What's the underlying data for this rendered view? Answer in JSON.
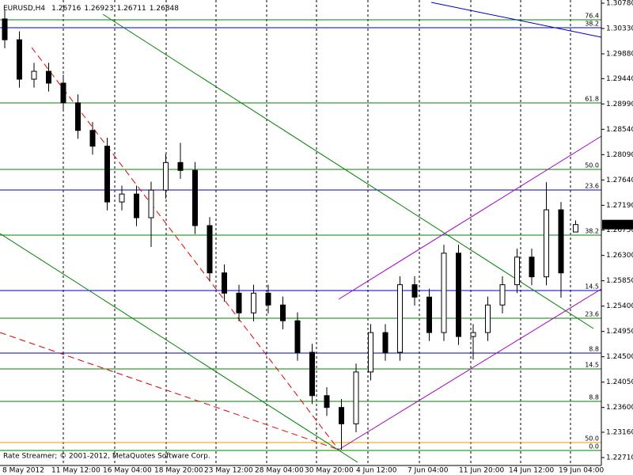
{
  "chart_data": {
    "type": "candlestick",
    "symbol": "EURUSD,H4",
    "copyright": "Rate Streamer; © 2001-2012, MetaQuotes Software Corp.",
    "ylim": [
      1.2271,
      1.3078
    ],
    "yticks": [
      {
        "value": 1.3078,
        "label": "1.30780"
      },
      {
        "value": 1.3033,
        "label": "1.30330"
      },
      {
        "value": 1.2988,
        "label": "1.29880"
      },
      {
        "value": 1.2944,
        "label": "1.29440"
      },
      {
        "value": 1.2899,
        "label": "1.28990"
      },
      {
        "value": 1.2854,
        "label": "1.28540"
      },
      {
        "value": 1.2809,
        "label": "1.28090"
      },
      {
        "value": 1.2764,
        "label": "1.27640"
      },
      {
        "value": 1.2719,
        "label": "1.27190"
      },
      {
        "value": 1.2675,
        "label": "1.26750"
      },
      {
        "value": 1.263,
        "label": "1.26300"
      },
      {
        "value": 1.2585,
        "label": "1.25850"
      },
      {
        "value": 1.254,
        "label": "1.25400"
      },
      {
        "value": 1.2495,
        "label": "1.24950"
      },
      {
        "value": 1.245,
        "label": "1.24500"
      },
      {
        "value": 1.2405,
        "label": "1.24050"
      },
      {
        "value": 1.236,
        "label": "1.23600"
      },
      {
        "value": 1.2316,
        "label": "1.23160"
      },
      {
        "value": 1.2271,
        "label": "1.22710"
      }
    ],
    "x_axis_labels": [
      "8 May 2012",
      "11 May 12:00",
      "16 May 04:00",
      "18 May 20:00",
      "23 May 12:00",
      "28 May 04:00",
      "30 May 20:00",
      "4 Jun 12:00",
      "7 Jun 04:00",
      "11 Jun 20:00",
      "14 Jun 12:00",
      "19 Jun 04:00"
    ],
    "open": [
      1.305,
      1.3013,
      1.2943,
      1.2957,
      1.2936,
      1.2901,
      1.2852,
      1.2824,
      1.2725,
      1.2739,
      1.2697,
      1.2746,
      1.2795,
      1.2781,
      1.2683,
      1.2599,
      1.2563,
      1.2528,
      1.2563,
      1.2542,
      1.2514,
      1.2458,
      1.2381,
      1.236,
      1.2331,
      1.2423,
      1.2493,
      1.2458,
      1.2578,
      1.2556,
      1.2493,
      1.2634,
      1.2486,
      1.2493,
      1.2542,
      1.2578,
      1.2627,
      1.2592,
      1.2711,
      1.26716
    ],
    "high": [
      1.3065,
      1.3028,
      1.2972,
      1.2972,
      1.2951,
      1.2916,
      1.2867,
      1.2839,
      1.2754,
      1.2754,
      1.2761,
      1.281,
      1.283,
      1.2796,
      1.2698,
      1.2614,
      1.2578,
      1.2578,
      1.2578,
      1.2557,
      1.2529,
      1.2473,
      1.2396,
      1.2375,
      1.2438,
      1.2508,
      1.2508,
      1.2593,
      1.2593,
      1.2571,
      1.2649,
      1.2649,
      1.2508,
      1.2557,
      1.2593,
      1.2642,
      1.2642,
      1.276,
      1.2725,
      1.26923
    ],
    "low": [
      1.2998,
      1.2928,
      1.2928,
      1.2921,
      1.2886,
      1.2837,
      1.2809,
      1.271,
      1.271,
      1.2682,
      1.2645,
      1.2731,
      1.2766,
      1.2668,
      1.2584,
      1.2548,
      1.2513,
      1.2513,
      1.2527,
      1.2499,
      1.2443,
      1.2366,
      1.2345,
      1.2285,
      1.2316,
      1.2408,
      1.2443,
      1.2443,
      1.2541,
      1.2478,
      1.2478,
      1.2471,
      1.2445,
      1.2478,
      1.2527,
      1.2563,
      1.2577,
      1.2577,
      1.2555,
      1.26711
    ],
    "close": [
      1.3013,
      1.2943,
      1.2957,
      1.2936,
      1.2901,
      1.2852,
      1.2824,
      1.2725,
      1.2739,
      1.2697,
      1.2746,
      1.2795,
      1.2781,
      1.2683,
      1.2599,
      1.2563,
      1.2528,
      1.2563,
      1.2542,
      1.2514,
      1.2458,
      1.2381,
      1.236,
      1.2331,
      1.2423,
      1.2493,
      1.2458,
      1.2578,
      1.2556,
      1.2493,
      1.2634,
      1.2486,
      1.2493,
      1.2542,
      1.2578,
      1.2627,
      1.2592,
      1.2711,
      1.2599,
      1.26848
    ],
    "fib_levels": [
      {
        "price": 1.30485,
        "label": "76.4",
        "color": "#008000"
      },
      {
        "price": 1.30344,
        "label": "38.2",
        "color": "#0000c0"
      },
      {
        "price": 1.29008,
        "label": "61.8",
        "color": "#008000"
      },
      {
        "price": 1.27827,
        "label": "50.0",
        "color": "#008000"
      },
      {
        "price": 1.27462,
        "label": "23.6",
        "color": "#0000c0"
      },
      {
        "price": 1.2666,
        "label": "38.2",
        "color": "#008000"
      },
      {
        "price": 1.25676,
        "label": "14.5",
        "color": "#0000c0"
      },
      {
        "price": 1.25184,
        "label": "23.6",
        "color": "#008000"
      },
      {
        "price": 1.24566,
        "label": "8.8",
        "color": "#0000c0"
      },
      {
        "price": 1.24284,
        "label": "14.5",
        "color": "#008000"
      },
      {
        "price": 1.23708,
        "label": "8.8",
        "color": "#008000"
      },
      {
        "price": 1.22977,
        "label": "50.0",
        "color": "#e0a000"
      },
      {
        "price": 1.22836,
        "label": "0.0",
        "color": "#008000"
      }
    ]
  }
}
